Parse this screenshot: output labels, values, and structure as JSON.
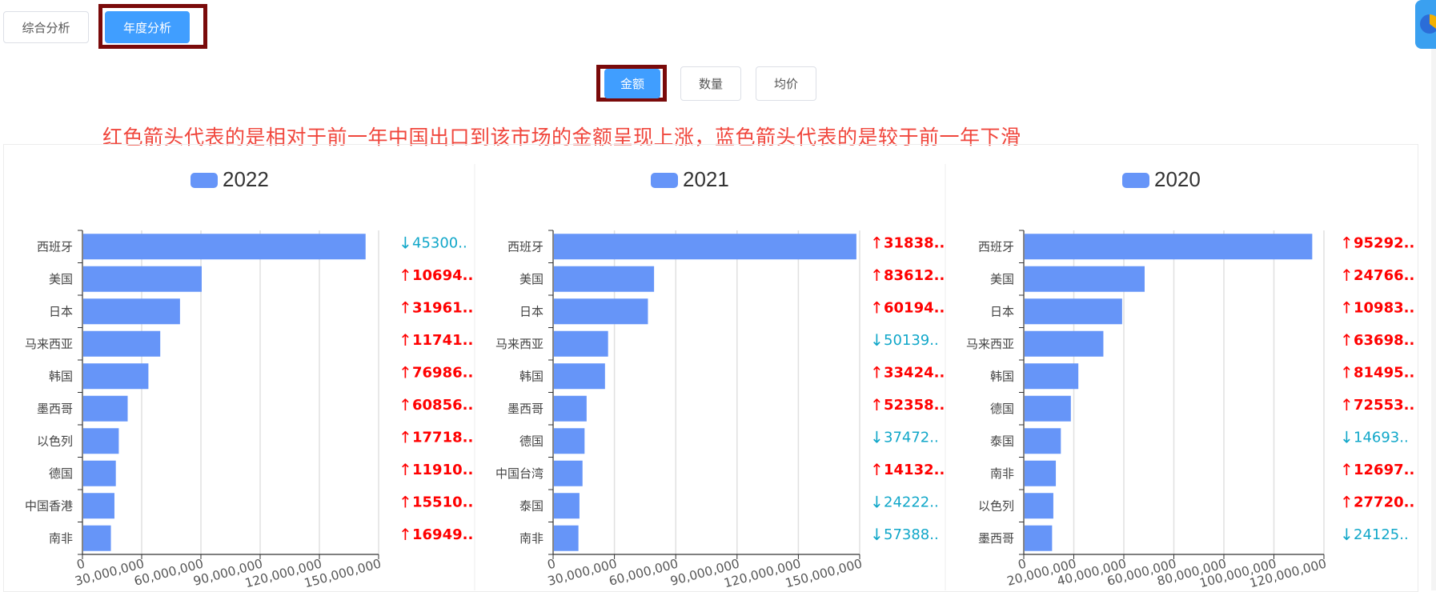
{
  "top_tabs": [
    {
      "label": "综合分析",
      "active": false
    },
    {
      "label": "年度分析",
      "active": true
    }
  ],
  "metric_buttons": [
    {
      "label": "金额",
      "active": true
    },
    {
      "label": "数量",
      "active": false
    },
    {
      "label": "均价",
      "active": false
    }
  ],
  "note": "红色箭头代表的是相对于前一年中国出口到该市场的金额呈现上涨，蓝色箭头代表的是较于前一年下滑",
  "colors": {
    "bar": "#6695f8",
    "up": "#ff0000",
    "down": "#11a7c9",
    "accent": "#409eff",
    "highlight": "#7a0a0a"
  },
  "chart_data": [
    {
      "type": "bar",
      "orientation": "horizontal",
      "legend": "2022",
      "categories": [
        "西班牙",
        "美国",
        "日本",
        "马来西亚",
        "韩国",
        "墨西哥",
        "以色列",
        "德国",
        "中国香港",
        "南非"
      ],
      "values": [
        143000000,
        60000000,
        49000000,
        39000000,
        33000000,
        22500000,
        18000000,
        16500000,
        15800000,
        14000000
      ],
      "xlim": [
        0,
        150000000
      ],
      "ticks": [
        "0",
        "30,000,000",
        "60,000,000",
        "90,000,000",
        "120,000,000",
        "150,000,000"
      ],
      "labels": [
        {
          "dir": "down",
          "text": "45300.."
        },
        {
          "dir": "up",
          "text": "10694.."
        },
        {
          "dir": "up",
          "text": "31961.."
        },
        {
          "dir": "up",
          "text": "11741.."
        },
        {
          "dir": "up",
          "text": "76986.."
        },
        {
          "dir": "up",
          "text": "60856.."
        },
        {
          "dir": "up",
          "text": "17718.."
        },
        {
          "dir": "up",
          "text": "11910.."
        },
        {
          "dir": "up",
          "text": "15510.."
        },
        {
          "dir": "up",
          "text": "16949.."
        }
      ]
    },
    {
      "type": "bar",
      "orientation": "horizontal",
      "legend": "2021",
      "categories": [
        "西班牙",
        "美国",
        "日本",
        "马来西亚",
        "韩国",
        "墨西哥",
        "德国",
        "中国台湾",
        "泰国",
        "南非"
      ],
      "values": [
        148000000,
        49000000,
        46000000,
        26500000,
        25000000,
        16000000,
        15000000,
        14000000,
        12500000,
        12000000
      ],
      "xlim": [
        0,
        150000000
      ],
      "ticks": [
        "0",
        "30,000,000",
        "60,000,000",
        "90,000,000",
        "120,000,000",
        "150,000,000"
      ],
      "labels": [
        {
          "dir": "up",
          "text": "31838.."
        },
        {
          "dir": "up",
          "text": "83612.."
        },
        {
          "dir": "up",
          "text": "60194.."
        },
        {
          "dir": "down",
          "text": "50139.."
        },
        {
          "dir": "up",
          "text": "33424.."
        },
        {
          "dir": "up",
          "text": "52358.."
        },
        {
          "dir": "down",
          "text": "37472.."
        },
        {
          "dir": "up",
          "text": "14132.."
        },
        {
          "dir": "down",
          "text": "24222.."
        },
        {
          "dir": "down",
          "text": "57388.."
        }
      ]
    },
    {
      "type": "bar",
      "orientation": "horizontal",
      "legend": "2020",
      "categories": [
        "西班牙",
        "美国",
        "日本",
        "马来西亚",
        "韩国",
        "德国",
        "泰国",
        "南非",
        "以色列",
        "墨西哥"
      ],
      "values": [
        115000000,
        48000000,
        39000000,
        31500000,
        21500000,
        18500000,
        14500000,
        12500000,
        11500000,
        11000000
      ],
      "xlim": [
        0,
        120000000
      ],
      "ticks": [
        "0",
        "20,000,000",
        "40,000,000",
        "60,000,000",
        "80,000,000",
        "100,000,000",
        "120,000,000"
      ],
      "labels": [
        {
          "dir": "up",
          "text": "95292.."
        },
        {
          "dir": "up",
          "text": "24766.."
        },
        {
          "dir": "up",
          "text": "10983.."
        },
        {
          "dir": "up",
          "text": "63698.."
        },
        {
          "dir": "up",
          "text": "81495.."
        },
        {
          "dir": "up",
          "text": "72553.."
        },
        {
          "dir": "down",
          "text": "14693.."
        },
        {
          "dir": "up",
          "text": "12697.."
        },
        {
          "dir": "up",
          "text": "27720.."
        },
        {
          "dir": "down",
          "text": "24125.."
        }
      ]
    }
  ]
}
